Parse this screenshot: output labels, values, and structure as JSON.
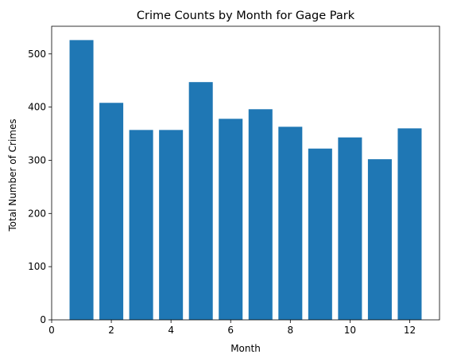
{
  "chart_data": {
    "type": "bar",
    "title": "Crime Counts by Month for Gage Park",
    "xlabel": "Month",
    "ylabel": "Total Number of Crimes",
    "x": [
      1,
      2,
      3,
      4,
      5,
      6,
      7,
      8,
      9,
      10,
      11,
      12
    ],
    "values": [
      526,
      408,
      357,
      357,
      447,
      378,
      396,
      363,
      322,
      343,
      302,
      360
    ],
    "xlim": [
      0,
      13
    ],
    "ylim": [
      0,
      552
    ],
    "xticks": [
      0,
      2,
      4,
      6,
      8,
      10,
      12
    ],
    "yticks": [
      0,
      100,
      200,
      300,
      400,
      500
    ],
    "bar_color": "#1f77b4",
    "grid": false,
    "legend": "none"
  }
}
